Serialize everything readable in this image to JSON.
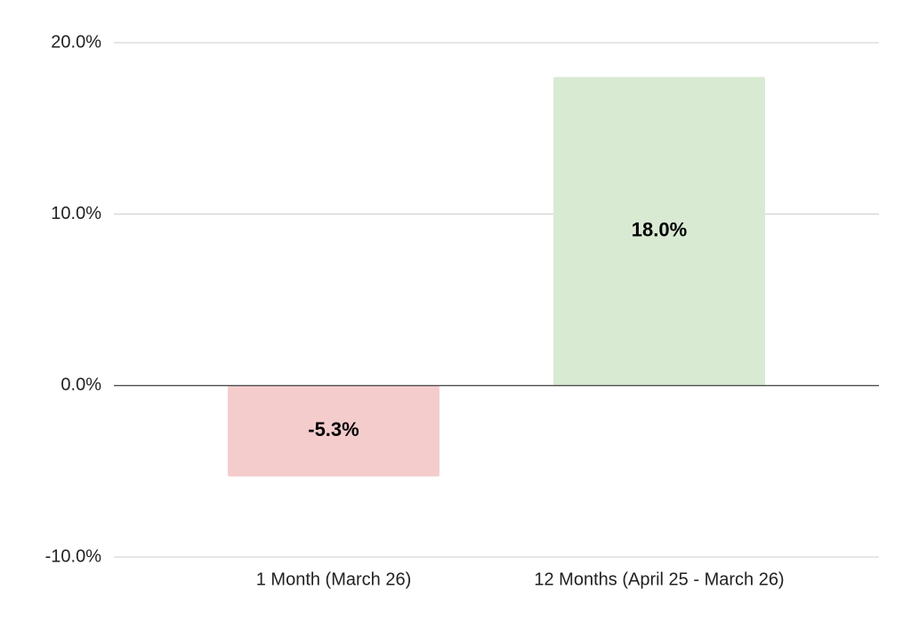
{
  "chart_data": {
    "type": "bar",
    "categories": [
      "1 Month (March 26)",
      "12 Months (April 25 - March 26)"
    ],
    "values": [
      -5.3,
      18.0
    ],
    "value_labels": [
      "-5.3%",
      "18.0%"
    ],
    "colors": [
      "#f4cccc",
      "#d9ead3"
    ],
    "ylim": [
      -10,
      20
    ],
    "yticks": [
      {
        "value": -10,
        "label": "-10.0%"
      },
      {
        "value": 0,
        "label": "0.0%"
      },
      {
        "value": 10,
        "label": "10.0%"
      },
      {
        "value": 20,
        "label": "20.0%"
      }
    ],
    "grid": true
  }
}
